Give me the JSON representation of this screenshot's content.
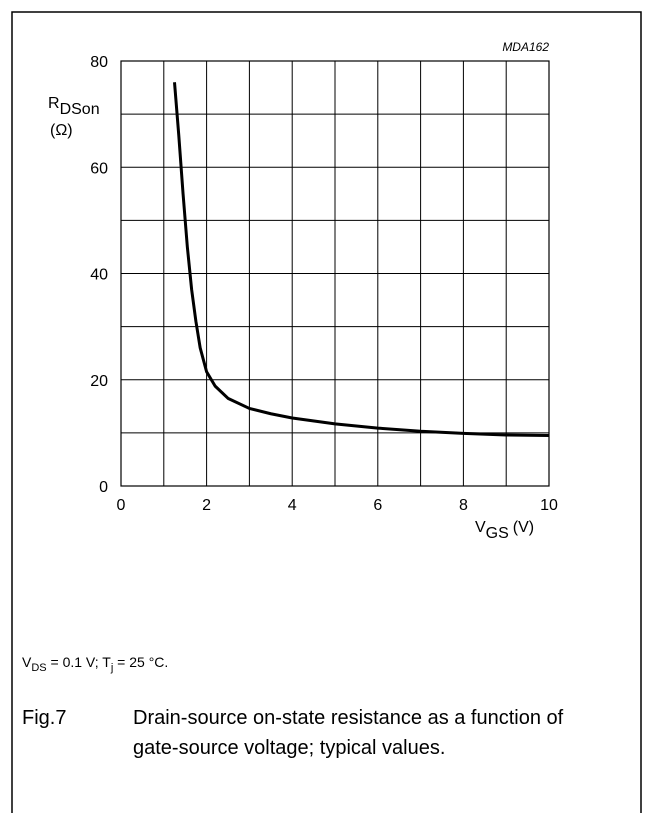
{
  "chart_data": {
    "type": "line",
    "code": "MDA162",
    "y_label": {
      "main": "R",
      "sub": "DSon",
      "unit": "(Ω)"
    },
    "x_label": {
      "main": "V",
      "sub": "GS",
      "unit": "(V)"
    },
    "xlim": [
      0,
      10
    ],
    "ylim": [
      0,
      80
    ],
    "xticks": [
      0,
      2,
      4,
      6,
      8,
      10
    ],
    "yticks": [
      0,
      20,
      40,
      60,
      80
    ],
    "x_minor_ticks": [
      1,
      3,
      5,
      7,
      9
    ],
    "y_minor_ticks": [
      10,
      30,
      50,
      70
    ],
    "grid": true,
    "series": [
      {
        "color": "#000000",
        "x": [
          1.25,
          1.35,
          1.45,
          1.55,
          1.65,
          1.75,
          1.85,
          2.0,
          2.2,
          2.5,
          3.0,
          3.5,
          4.0,
          5.0,
          6.0,
          7.0,
          8.0,
          9.0,
          10.0
        ],
        "values": [
          76,
          66,
          55,
          45,
          37,
          31,
          26,
          21.5,
          18.8,
          16.5,
          14.6,
          13.6,
          12.8,
          11.7,
          10.9,
          10.3,
          9.9,
          9.6,
          9.5
        ]
      }
    ],
    "conditions": [
      "V",
      "DS",
      " = 0.1 V; T",
      "j",
      " = 25 °C."
    ],
    "figure_number": "Fig.7",
    "caption": "Drain-source on-state resistance as a function of gate-source voltage; typical values."
  }
}
